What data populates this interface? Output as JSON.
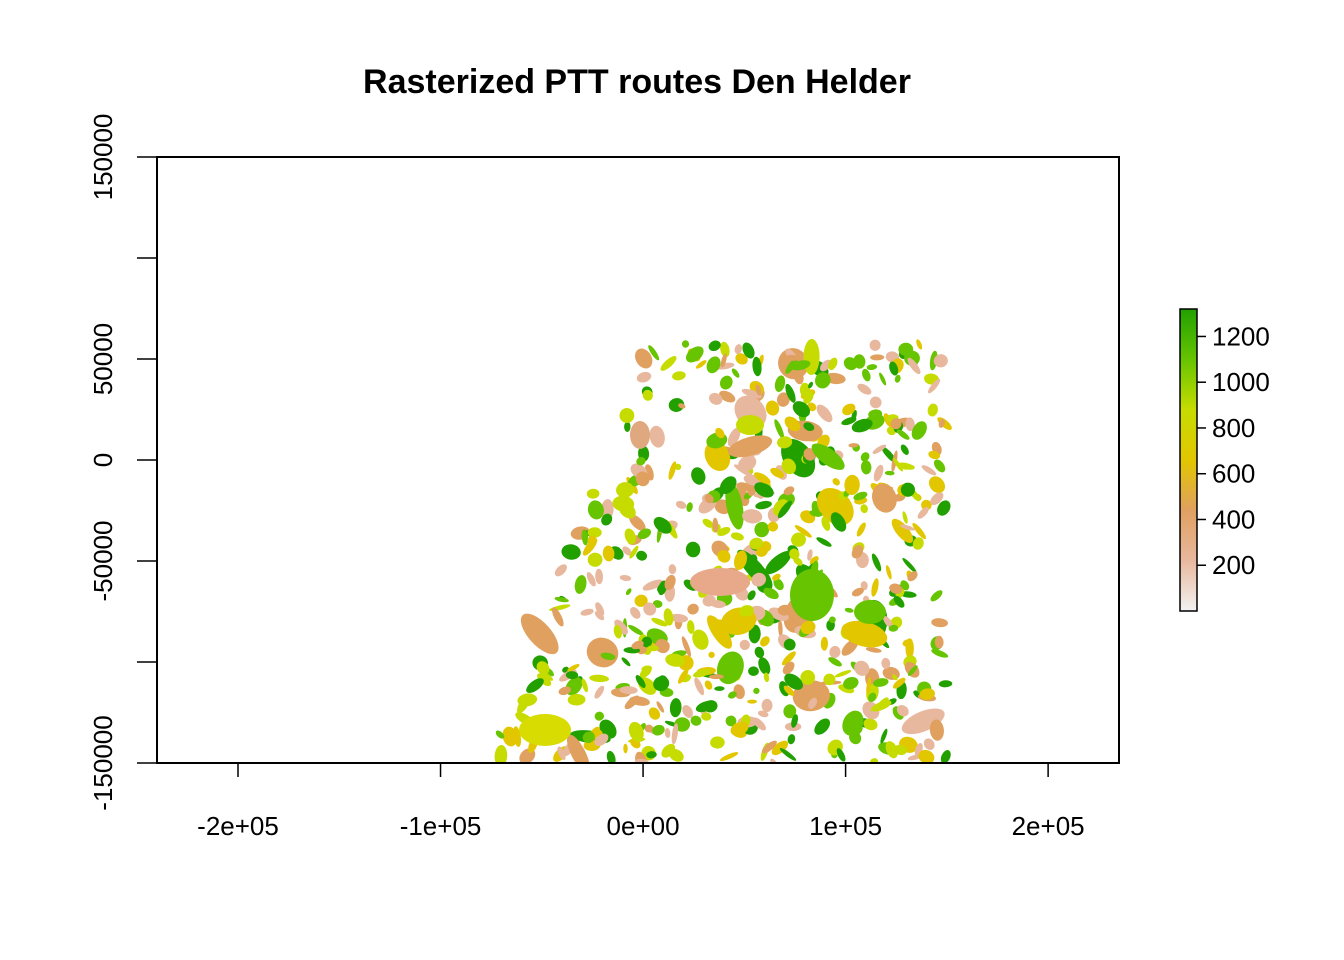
{
  "chart_data": {
    "type": "heatmap",
    "title": "Rasterized PTT routes Den Helder",
    "xlabel": "",
    "ylabel": "",
    "xlim": [
      -240000,
      235000
    ],
    "ylim": [
      -150000,
      150000
    ],
    "x_ticks": [
      -200000,
      -100000,
      0,
      100000,
      200000
    ],
    "x_tick_labels": [
      "-2e+05",
      "-1e+05",
      "0e+00",
      "1e+05",
      "2e+05"
    ],
    "y_ticks": [
      -150000,
      -100000,
      -50000,
      0,
      50000,
      100000,
      150000
    ],
    "y_tick_labels": [
      "-150000",
      "",
      "-50000",
      "0",
      "50000",
      "",
      "150000"
    ],
    "legend": {
      "placement": "right",
      "min": 0,
      "max": 1320,
      "ticks": [
        200,
        400,
        600,
        800,
        1000,
        1200
      ],
      "tick_labels": [
        "200",
        "400",
        "600",
        "800",
        "1000",
        "1200"
      ],
      "colors": [
        "#f2f2f2",
        "#e8b89e",
        "#e0a060",
        "#e2c600",
        "#c6dc00",
        "#66c400",
        "#22a000"
      ]
    },
    "data_extent": {
      "x": [
        -80000,
        150000
      ],
      "y": [
        -150000,
        60000
      ]
    }
  }
}
